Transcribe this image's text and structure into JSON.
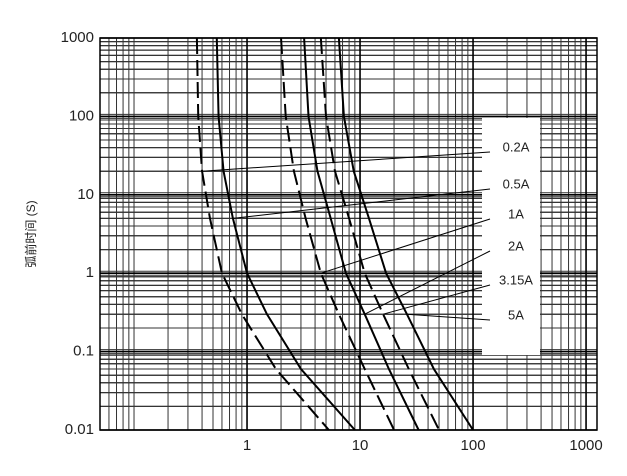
{
  "chart_data": {
    "type": "line",
    "y_label": "弧前时间 (S)",
    "xlog": true,
    "ylog": true,
    "grid": true,
    "xlim": [
      0.05,
      1250
    ],
    "ylim": [
      0.01,
      1000
    ],
    "xticks": [
      1,
      10,
      100,
      1000
    ],
    "yticks": [
      0.01,
      0.1,
      1,
      10,
      100,
      1000
    ],
    "series": [
      {
        "name": "0.2A",
        "color": "#000000",
        "dash": true,
        "x": [
          0.36,
          0.37,
          0.4,
          0.47,
          0.6,
          0.9,
          1.8,
          5.3
        ],
        "values": [
          1000,
          100,
          20,
          5,
          1,
          0.3,
          0.06,
          0.01
        ]
      },
      {
        "name": "0.5A",
        "color": "#000000",
        "dash": false,
        "x": [
          0.54,
          0.56,
          0.62,
          0.75,
          1,
          1.5,
          3,
          9
        ],
        "values": [
          1000,
          100,
          20,
          5,
          1,
          0.3,
          0.06,
          0.01
        ]
      },
      {
        "name": "1A",
        "color": "#000000",
        "dash": true,
        "x": [
          2,
          2.2,
          2.6,
          3.3,
          4.5,
          6.5,
          11,
          20
        ],
        "values": [
          1000,
          100,
          20,
          5,
          1,
          0.3,
          0.06,
          0.01
        ]
      },
      {
        "name": "2A",
        "color": "#000000",
        "dash": false,
        "x": [
          3.2,
          3.5,
          4.2,
          5.5,
          7.5,
          11,
          18,
          33
        ],
        "values": [
          1000,
          100,
          20,
          5,
          1,
          0.3,
          0.06,
          0.01
        ]
      },
      {
        "name": "3.15A",
        "color": "#000000",
        "dash": true,
        "x": [
          4.5,
          5,
          6,
          8,
          11,
          16,
          27,
          50
        ],
        "values": [
          1000,
          100,
          20,
          5,
          1,
          0.3,
          0.06,
          0.01
        ]
      },
      {
        "name": "5A",
        "color": "#000000",
        "dash": false,
        "x": [
          6.5,
          7.2,
          8.8,
          12,
          17,
          26,
          45,
          100
        ],
        "values": [
          1000,
          100,
          20,
          5,
          1,
          0.3,
          0.06,
          0.01
        ]
      }
    ]
  }
}
